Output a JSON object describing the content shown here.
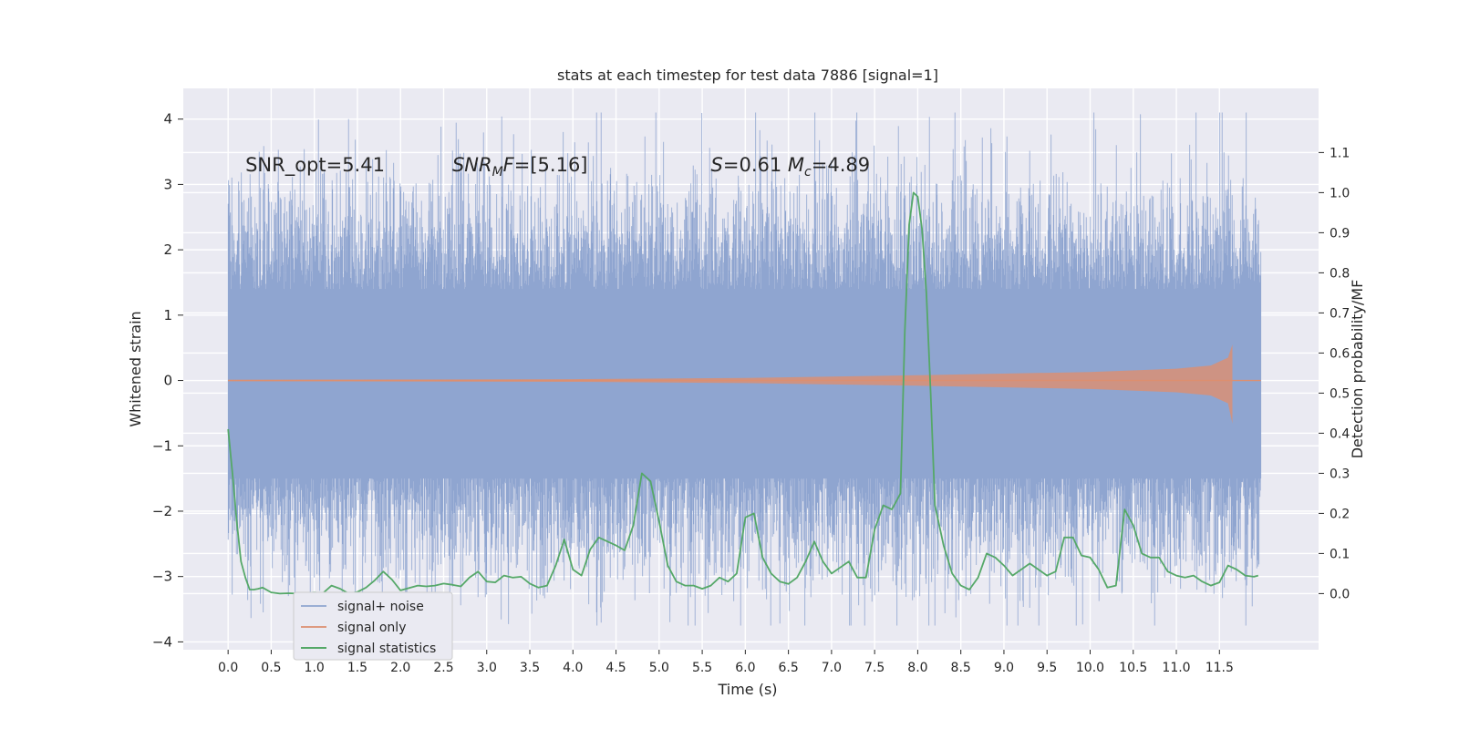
{
  "chart_data": {
    "type": "line",
    "title": "stats at each timestep for test data 7886 [signal=1]",
    "xlabel": "Time (s)",
    "ylabel": "Whitened strain",
    "y2label": "Detection probability/MF",
    "xlim": [
      -0.52,
      12.65
    ],
    "ylim": [
      -4.12,
      4.47
    ],
    "y2lim": [
      -0.14,
      1.26
    ],
    "x_ticks": [
      0.0,
      0.5,
      1.0,
      1.5,
      2.0,
      2.5,
      3.0,
      3.5,
      4.0,
      4.5,
      5.0,
      5.5,
      6.0,
      6.5,
      7.0,
      7.5,
      8.0,
      8.5,
      9.0,
      9.5,
      10.0,
      10.5,
      11.0,
      11.5
    ],
    "x_tick_labels": [
      "0.0",
      "0.5",
      "1.0",
      "1.5",
      "2.0",
      "2.5",
      "3.0",
      "3.5",
      "4.0",
      "4.5",
      "5.0",
      "5.5",
      "6.0",
      "6.5",
      "7.0",
      "7.5",
      "8.0",
      "8.5",
      "9.0",
      "9.5",
      "10.0",
      "10.5",
      "11.0",
      "11.5"
    ],
    "y_ticks": [
      4,
      3,
      2,
      1,
      0,
      -1,
      -2,
      -3,
      -4
    ],
    "y_tick_labels": [
      "4",
      "3",
      "2",
      "1",
      "0",
      "−1",
      "−2",
      "−3",
      "−4"
    ],
    "y2_ticks": [
      1.1,
      1.0,
      0.9,
      0.8,
      0.7,
      0.6,
      0.5,
      0.4,
      0.3,
      0.2,
      0.1,
      0.0
    ],
    "y2_tick_labels": [
      "1.1",
      "1.0",
      "0.9",
      "0.8",
      "0.7",
      "0.6",
      "0.5",
      "0.4",
      "0.3",
      "0.2",
      "0.1",
      "0.0"
    ],
    "annotations": [
      {
        "text": "SNR_opt=5.41",
        "x": 0.2,
        "y": 3.2
      },
      {
        "text": "SNR_MF=[5.16]",
        "x": 2.6,
        "y": 3.2
      },
      {
        "text": "S=0.61   M_c=4.89",
        "x": 5.6,
        "y": 3.2
      }
    ],
    "legend": {
      "location": "lower-left",
      "entries": [
        "signal+ noise",
        "signal only",
        "signal statistics"
      ]
    },
    "grid": true,
    "series": [
      {
        "name": "signal+ noise",
        "axis": "left",
        "color": "#8fa5d0",
        "style": "dense noise",
        "x_range": [
          0.0,
          11.98
        ],
        "dense_band": [
          -1.5,
          1.4
        ],
        "extremes": [
          -3.75,
          4.1
        ]
      },
      {
        "name": "signal only",
        "axis": "left",
        "color": "#dd8f6f",
        "style": "chirp",
        "x_range": [
          0.0,
          11.65
        ],
        "envelope": [
          [
            0.0,
            0.01
          ],
          [
            4.0,
            0.02
          ],
          [
            6.0,
            0.04
          ],
          [
            8.0,
            0.08
          ],
          [
            10.0,
            0.13
          ],
          [
            11.0,
            0.18
          ],
          [
            11.4,
            0.23
          ],
          [
            11.6,
            0.35
          ],
          [
            11.65,
            0.55
          ]
        ]
      },
      {
        "name": "signal statistics",
        "axis": "right",
        "color": "#55a868",
        "x": [
          0.0,
          0.05,
          0.1,
          0.15,
          0.2,
          0.25,
          0.3,
          0.35,
          0.4,
          0.5,
          0.6,
          0.7,
          0.8,
          0.9,
          1.0,
          1.1,
          1.2,
          1.3,
          1.4,
          1.5,
          1.6,
          1.7,
          1.8,
          1.9,
          2.0,
          2.1,
          2.2,
          2.3,
          2.4,
          2.5,
          2.6,
          2.7,
          2.8,
          2.9,
          3.0,
          3.1,
          3.2,
          3.3,
          3.4,
          3.5,
          3.6,
          3.7,
          3.8,
          3.9,
          4.0,
          4.1,
          4.2,
          4.3,
          4.4,
          4.5,
          4.6,
          4.7,
          4.8,
          4.9,
          5.0,
          5.1,
          5.2,
          5.3,
          5.4,
          5.5,
          5.6,
          5.7,
          5.8,
          5.9,
          6.0,
          6.1,
          6.2,
          6.3,
          6.4,
          6.5,
          6.6,
          6.7,
          6.8,
          6.9,
          7.0,
          7.1,
          7.2,
          7.3,
          7.4,
          7.5,
          7.6,
          7.7,
          7.8,
          7.85,
          7.9,
          7.95,
          8.0,
          8.05,
          8.1,
          8.15,
          8.2,
          8.3,
          8.4,
          8.5,
          8.6,
          8.7,
          8.8,
          8.9,
          9.0,
          9.1,
          9.2,
          9.3,
          9.4,
          9.5,
          9.6,
          9.7,
          9.8,
          9.9,
          10.0,
          10.1,
          10.2,
          10.3,
          10.4,
          10.5,
          10.6,
          10.7,
          10.8,
          10.9,
          11.0,
          11.1,
          11.2,
          11.3,
          11.4,
          11.5,
          11.6,
          11.7,
          11.8,
          11.9,
          11.95
        ],
        "y": [
          0.41,
          0.3,
          0.18,
          0.08,
          0.04,
          0.01,
          0.01,
          0.012,
          0.015,
          0.003,
          0.0,
          0.001,
          0.0,
          0.001,
          0.003,
          0.001,
          0.02,
          0.012,
          0.0,
          0.004,
          0.015,
          0.033,
          0.055,
          0.035,
          0.008,
          0.014,
          0.02,
          0.018,
          0.02,
          0.025,
          0.022,
          0.018,
          0.04,
          0.055,
          0.03,
          0.028,
          0.045,
          0.04,
          0.042,
          0.025,
          0.015,
          0.02,
          0.07,
          0.135,
          0.06,
          0.045,
          0.11,
          0.14,
          0.13,
          0.12,
          0.108,
          0.17,
          0.3,
          0.28,
          0.18,
          0.07,
          0.03,
          0.02,
          0.02,
          0.012,
          0.02,
          0.04,
          0.03,
          0.05,
          0.19,
          0.2,
          0.09,
          0.05,
          0.03,
          0.024,
          0.04,
          0.08,
          0.13,
          0.08,
          0.05,
          0.065,
          0.08,
          0.04,
          0.04,
          0.16,
          0.22,
          0.21,
          0.25,
          0.65,
          0.92,
          1.0,
          0.99,
          0.91,
          0.75,
          0.5,
          0.22,
          0.12,
          0.05,
          0.02,
          0.01,
          0.04,
          0.1,
          0.09,
          0.07,
          0.045,
          0.06,
          0.075,
          0.06,
          0.045,
          0.055,
          0.14,
          0.14,
          0.095,
          0.09,
          0.06,
          0.015,
          0.02,
          0.21,
          0.17,
          0.1,
          0.09,
          0.09,
          0.055,
          0.045,
          0.04,
          0.045,
          0.03,
          0.02,
          0.028,
          0.07,
          0.06,
          0.045,
          0.042,
          0.045
        ]
      }
    ]
  }
}
